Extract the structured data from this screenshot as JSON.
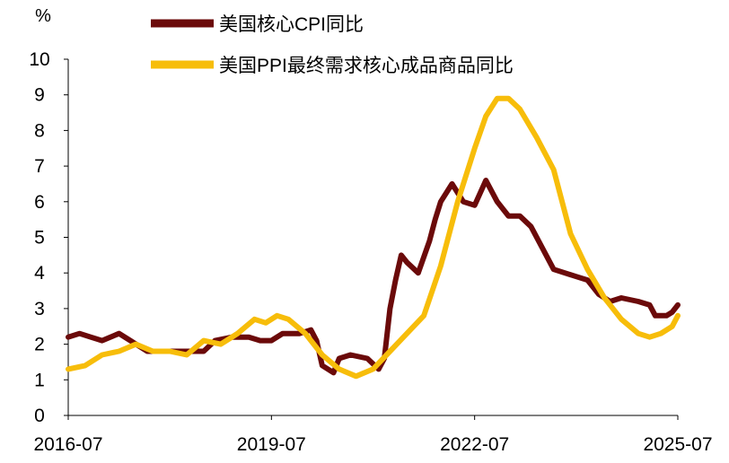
{
  "chart_data": {
    "type": "line",
    "unit_label": "%",
    "xlabel": "",
    "ylabel": "",
    "ylim": [
      0,
      10
    ],
    "y_ticks": [
      0,
      1,
      2,
      3,
      4,
      5,
      6,
      7,
      8,
      9,
      10
    ],
    "x_ticks": [
      "2016-07",
      "2019-07",
      "2022-07",
      "2025-07"
    ],
    "x_range": [
      "2016-07",
      "2025-07"
    ],
    "grid": false,
    "legend_position": "top",
    "series": [
      {
        "name": "美国核心CPI同比",
        "color": "#6b0a0a",
        "points": [
          [
            "2016-07",
            2.2
          ],
          [
            "2016-09",
            2.3
          ],
          [
            "2016-11",
            2.2
          ],
          [
            "2017-01",
            2.1
          ],
          [
            "2017-04",
            2.3
          ],
          [
            "2017-06",
            2.1
          ],
          [
            "2017-09",
            1.8
          ],
          [
            "2018-01",
            1.8
          ],
          [
            "2018-04",
            1.8
          ],
          [
            "2018-07",
            1.8
          ],
          [
            "2018-09",
            2.1
          ],
          [
            "2018-12",
            2.2
          ],
          [
            "2019-03",
            2.2
          ],
          [
            "2019-05",
            2.1
          ],
          [
            "2019-07",
            2.1
          ],
          [
            "2019-09",
            2.3
          ],
          [
            "2019-12",
            2.3
          ],
          [
            "2020-02",
            2.4
          ],
          [
            "2020-03",
            2.1
          ],
          [
            "2020-04",
            1.4
          ],
          [
            "2020-06",
            1.2
          ],
          [
            "2020-07",
            1.6
          ],
          [
            "2020-09",
            1.7
          ],
          [
            "2020-12",
            1.6
          ],
          [
            "2021-02",
            1.3
          ],
          [
            "2021-03",
            1.6
          ],
          [
            "2021-04",
            3.0
          ],
          [
            "2021-05",
            3.8
          ],
          [
            "2021-06",
            4.5
          ],
          [
            "2021-07",
            4.3
          ],
          [
            "2021-09",
            4.0
          ],
          [
            "2021-11",
            4.9
          ],
          [
            "2021-12",
            5.5
          ],
          [
            "2022-01",
            6.0
          ],
          [
            "2022-03",
            6.5
          ],
          [
            "2022-05",
            6.0
          ],
          [
            "2022-07",
            5.9
          ],
          [
            "2022-09",
            6.6
          ],
          [
            "2022-11",
            6.0
          ],
          [
            "2023-01",
            5.6
          ],
          [
            "2023-03",
            5.6
          ],
          [
            "2023-05",
            5.3
          ],
          [
            "2023-07",
            4.7
          ],
          [
            "2023-09",
            4.1
          ],
          [
            "2024-01",
            3.9
          ],
          [
            "2024-03",
            3.8
          ],
          [
            "2024-05",
            3.4
          ],
          [
            "2024-07",
            3.2
          ],
          [
            "2024-09",
            3.3
          ],
          [
            "2024-12",
            3.2
          ],
          [
            "2025-02",
            3.1
          ],
          [
            "2025-03",
            2.8
          ],
          [
            "2025-05",
            2.8
          ],
          [
            "2025-06",
            2.9
          ],
          [
            "2025-07",
            3.1
          ]
        ]
      },
      {
        "name": "美国PPI最终需求核心成品商品同比",
        "color": "#f7bd0a",
        "points": [
          [
            "2016-07",
            1.3
          ],
          [
            "2016-10",
            1.4
          ],
          [
            "2017-01",
            1.7
          ],
          [
            "2017-04",
            1.8
          ],
          [
            "2017-07",
            2.0
          ],
          [
            "2017-10",
            1.8
          ],
          [
            "2018-01",
            1.8
          ],
          [
            "2018-04",
            1.7
          ],
          [
            "2018-07",
            2.1
          ],
          [
            "2018-10",
            2.0
          ],
          [
            "2019-01",
            2.3
          ],
          [
            "2019-04",
            2.7
          ],
          [
            "2019-06",
            2.6
          ],
          [
            "2019-08",
            2.8
          ],
          [
            "2019-10",
            2.7
          ],
          [
            "2020-01",
            2.3
          ],
          [
            "2020-04",
            1.7
          ],
          [
            "2020-07",
            1.3
          ],
          [
            "2020-10",
            1.1
          ],
          [
            "2021-01",
            1.3
          ],
          [
            "2021-04",
            1.8
          ],
          [
            "2021-07",
            2.3
          ],
          [
            "2021-10",
            2.8
          ],
          [
            "2022-01",
            4.2
          ],
          [
            "2022-04",
            6.0
          ],
          [
            "2022-07",
            7.5
          ],
          [
            "2022-09",
            8.4
          ],
          [
            "2022-11",
            8.9
          ],
          [
            "2023-01",
            8.9
          ],
          [
            "2023-03",
            8.6
          ],
          [
            "2023-06",
            7.8
          ],
          [
            "2023-09",
            6.9
          ],
          [
            "2023-12",
            5.1
          ],
          [
            "2024-03",
            4.1
          ],
          [
            "2024-06",
            3.3
          ],
          [
            "2024-09",
            2.7
          ],
          [
            "2024-12",
            2.3
          ],
          [
            "2025-02",
            2.2
          ],
          [
            "2025-04",
            2.3
          ],
          [
            "2025-06",
            2.5
          ],
          [
            "2025-07",
            2.8
          ]
        ]
      }
    ]
  }
}
